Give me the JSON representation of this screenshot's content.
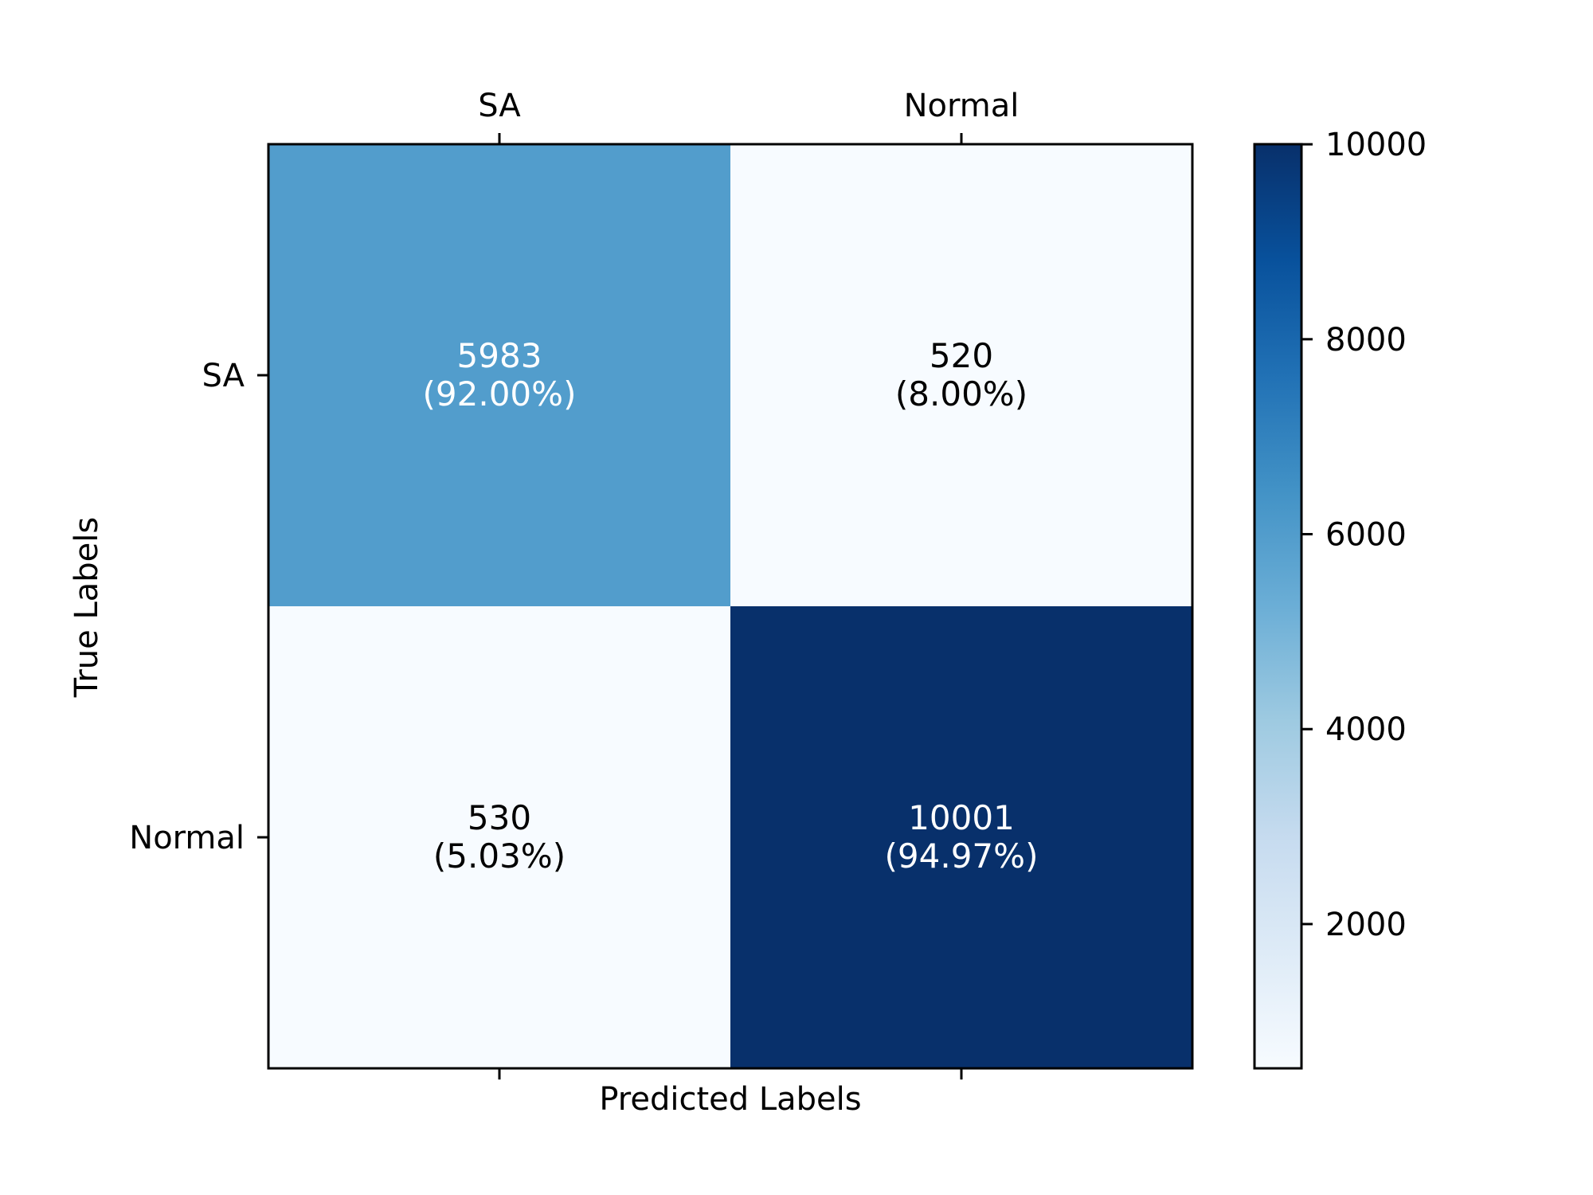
{
  "chart_data": {
    "type": "heatmap",
    "title": "",
    "xlabel": "Predicted Labels",
    "ylabel": "True Labels",
    "x_categories": [
      "SA",
      "Normal"
    ],
    "y_categories": [
      "SA",
      "Normal"
    ],
    "values": [
      [
        5983,
        520
      ],
      [
        530,
        10001
      ]
    ],
    "percentages": [
      [
        "(92.00%)",
        "(8.00%)"
      ],
      [
        "(5.03%)",
        "(94.97%)"
      ]
    ],
    "x_tick_position": "top",
    "colormap": "Blues",
    "colorbar": {
      "vmin": 520,
      "vmax": 10001,
      "ticks": [
        2000,
        4000,
        6000,
        8000,
        10000
      ],
      "tick_labels": [
        "2000",
        "4000",
        "6000",
        "8000",
        "10000"
      ]
    },
    "grid": false
  },
  "colors": {
    "axis": "#000000",
    "cmap_stops": [
      "#f7fbff",
      "#deebf7",
      "#c6dbef",
      "#9ecae1",
      "#6baed6",
      "#4292c6",
      "#2171b5",
      "#08519c",
      "#08306b"
    ],
    "text_dark": "#000000",
    "text_light": "#ffffff"
  }
}
